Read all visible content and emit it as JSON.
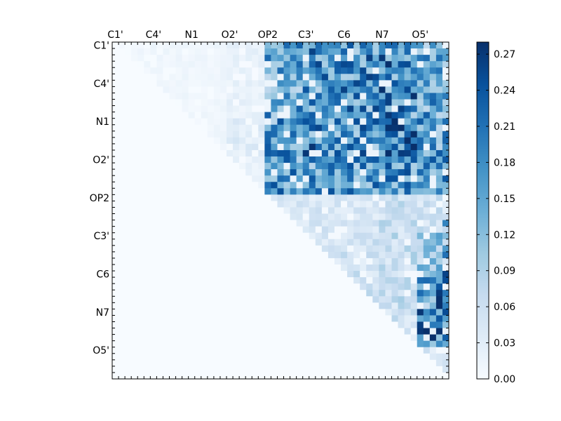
{
  "chart_data": {
    "type": "heatmap",
    "title": "",
    "xlabel": "",
    "ylabel": "",
    "size": 53,
    "x_tick_labels": [
      "C1'",
      "C4'",
      "N1",
      "O2'",
      "OP2",
      "C3'",
      "C6",
      "N7",
      "O5'"
    ],
    "y_tick_labels": [
      "C1'",
      "C4'",
      "N1",
      "O2'",
      "OP2",
      "C3'",
      "C6",
      "N7",
      "O5'"
    ],
    "tick_label_index_positions": [
      0,
      6,
      12,
      18,
      24,
      30,
      36,
      42,
      48
    ],
    "color_range": [
      0.0,
      0.28
    ],
    "colorbar_ticks": [
      "0.00",
      "0.03",
      "0.06",
      "0.09",
      "0.12",
      "0.15",
      "0.18",
      "0.21",
      "0.24",
      "0.27"
    ],
    "colormap": "Blues",
    "colormap_stops": [
      "#f7fbff",
      "#deebf7",
      "#c6dbef",
      "#9ecae1",
      "#6baed6",
      "#4292c6",
      "#2171b5",
      "#08519c",
      "#08306b"
    ],
    "matrix_pattern": "upper-triangular",
    "zero_value": 0.0,
    "block_intensity": {
      "rows": [
        [
          0.01,
          0.01,
          0.01,
          0.02,
          0.14,
          0.16,
          0.16,
          0.18,
          0.14
        ],
        [
          0.0,
          0.01,
          0.01,
          0.02,
          0.14,
          0.15,
          0.16,
          0.17,
          0.14
        ],
        [
          0.0,
          0.0,
          0.01,
          0.03,
          0.15,
          0.17,
          0.16,
          0.18,
          0.15
        ],
        [
          0.0,
          0.0,
          0.0,
          0.02,
          0.15,
          0.15,
          0.15,
          0.16,
          0.15
        ],
        [
          0.0,
          0.0,
          0.0,
          0.0,
          0.04,
          0.04,
          0.04,
          0.06,
          0.05
        ],
        [
          0.0,
          0.0,
          0.0,
          0.0,
          0.0,
          0.04,
          0.05,
          0.06,
          0.1
        ],
        [
          0.0,
          0.0,
          0.0,
          0.0,
          0.0,
          0.0,
          0.05,
          0.06,
          0.14
        ],
        [
          0.0,
          0.0,
          0.0,
          0.0,
          0.0,
          0.0,
          0.0,
          0.05,
          0.2
        ],
        [
          0.0,
          0.0,
          0.0,
          0.0,
          0.0,
          0.0,
          0.0,
          0.0,
          0.04
        ]
      ]
    },
    "hot_cells": [
      {
        "row": 0,
        "col": 37,
        "value": 0.24
      },
      {
        "row": 0,
        "col": 43,
        "value": 0.22
      },
      {
        "row": 4,
        "col": 37,
        "value": 0.23
      },
      {
        "row": 10,
        "col": 37,
        "value": 0.26
      },
      {
        "row": 12,
        "col": 43,
        "value": 0.22
      },
      {
        "row": 13,
        "col": 50,
        "value": 0.2
      },
      {
        "row": 16,
        "col": 50,
        "value": 0.22
      },
      {
        "row": 28,
        "col": 52,
        "value": 0.19
      },
      {
        "row": 33,
        "col": 52,
        "value": 0.21
      },
      {
        "row": 36,
        "col": 52,
        "value": 0.26
      },
      {
        "row": 37,
        "col": 52,
        "value": 0.25
      },
      {
        "row": 38,
        "col": 51,
        "value": 0.24
      },
      {
        "row": 39,
        "col": 51,
        "value": 0.27
      },
      {
        "row": 40,
        "col": 51,
        "value": 0.28
      },
      {
        "row": 41,
        "col": 51,
        "value": 0.28
      },
      {
        "row": 42,
        "col": 52,
        "value": 0.25
      },
      {
        "row": 43,
        "col": 51,
        "value": 0.24
      },
      {
        "row": 44,
        "col": 50,
        "value": 0.2
      }
    ],
    "grid": false,
    "legend": "colorbar-right"
  }
}
